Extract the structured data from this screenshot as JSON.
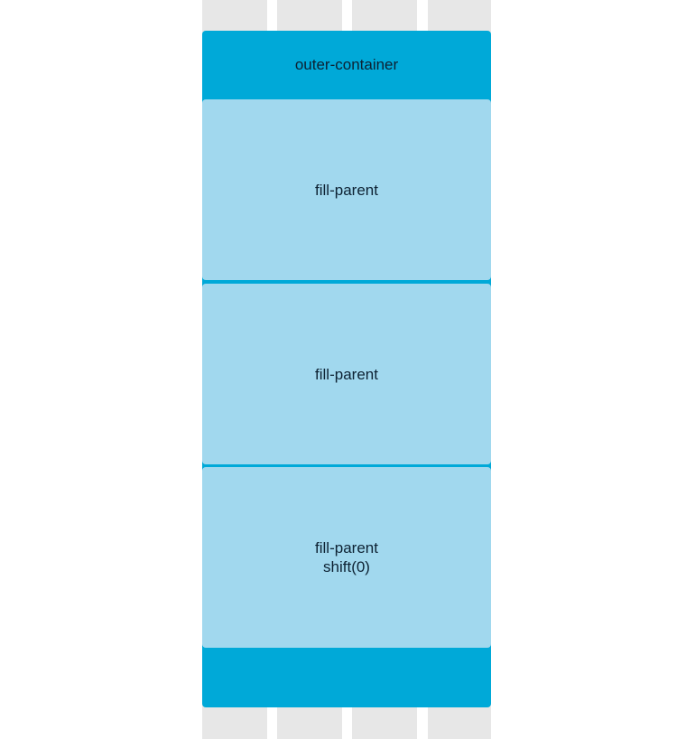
{
  "colors": {
    "grid": "#e7e7e7",
    "outer": "#00a9d8",
    "child": "#a1d8ee",
    "text": "#0d2233"
  },
  "outer_container": {
    "label": "outer-container"
  },
  "children": [
    {
      "line1": "fill-parent",
      "line2": ""
    },
    {
      "line1": "fill-parent",
      "line2": ""
    },
    {
      "line1": "fill-parent",
      "line2": "shift(0)"
    }
  ]
}
